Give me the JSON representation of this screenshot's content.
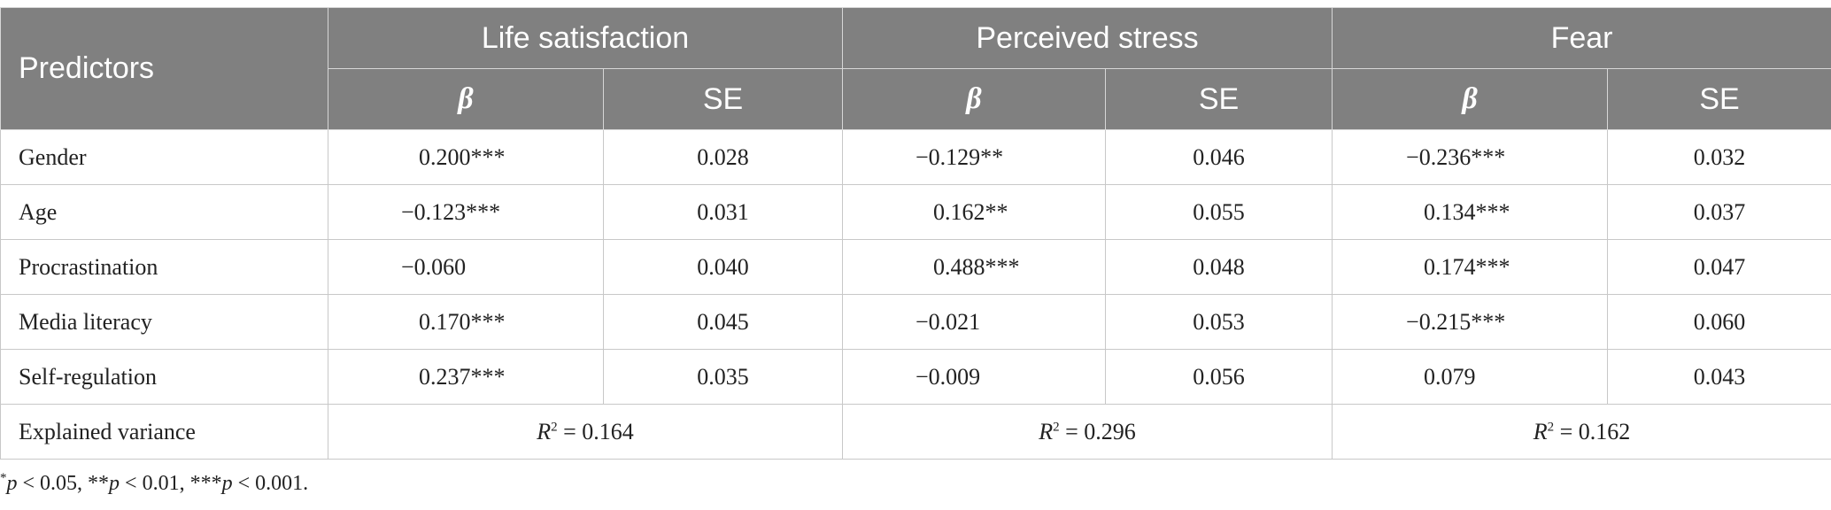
{
  "header": {
    "predictors": "Predictors",
    "groups": [
      "Life satisfaction",
      "Perceived stress",
      "Fear"
    ],
    "beta": "β",
    "se": "SE"
  },
  "rows": [
    {
      "name": "Gender",
      "ls_b": "0.200***",
      "ls_se": "0.028",
      "ps_b": "−0.129**",
      "ps_se": "0.046",
      "f_b": "−0.236***",
      "f_se": "0.032"
    },
    {
      "name": "Age",
      "ls_b": "−0.123***",
      "ls_se": "0.031",
      "ps_b": "0.162**",
      "ps_se": "0.055",
      "f_b": "0.134***",
      "f_se": "0.037"
    },
    {
      "name": "Procrastination",
      "ls_b": "−0.060",
      "ls_se": "0.040",
      "ps_b": "0.488***",
      "ps_se": "0.048",
      "f_b": "0.174***",
      "f_se": "0.047"
    },
    {
      "name": "Media literacy",
      "ls_b": "0.170***",
      "ls_se": "0.045",
      "ps_b": "−0.021",
      "ps_se": "0.053",
      "f_b": "−0.215***",
      "f_se": "0.060"
    },
    {
      "name": "Self-regulation",
      "ls_b": "0.237***",
      "ls_se": "0.035",
      "ps_b": "−0.009",
      "ps_se": "0.056",
      "f_b": "0.079",
      "f_se": "0.043"
    }
  ],
  "explained": {
    "label": "Explained variance",
    "r_symbol": "R",
    "r_exp": "2",
    "values": [
      "= 0.164",
      "= 0.296",
      "= 0.162"
    ]
  },
  "footnote": {
    "s1": "*",
    "p1": "p",
    "t1": " < 0.05, **",
    "p2": "p",
    "t2": " < 0.01, ***",
    "p3": "p",
    "t3": " < 0.001."
  }
}
